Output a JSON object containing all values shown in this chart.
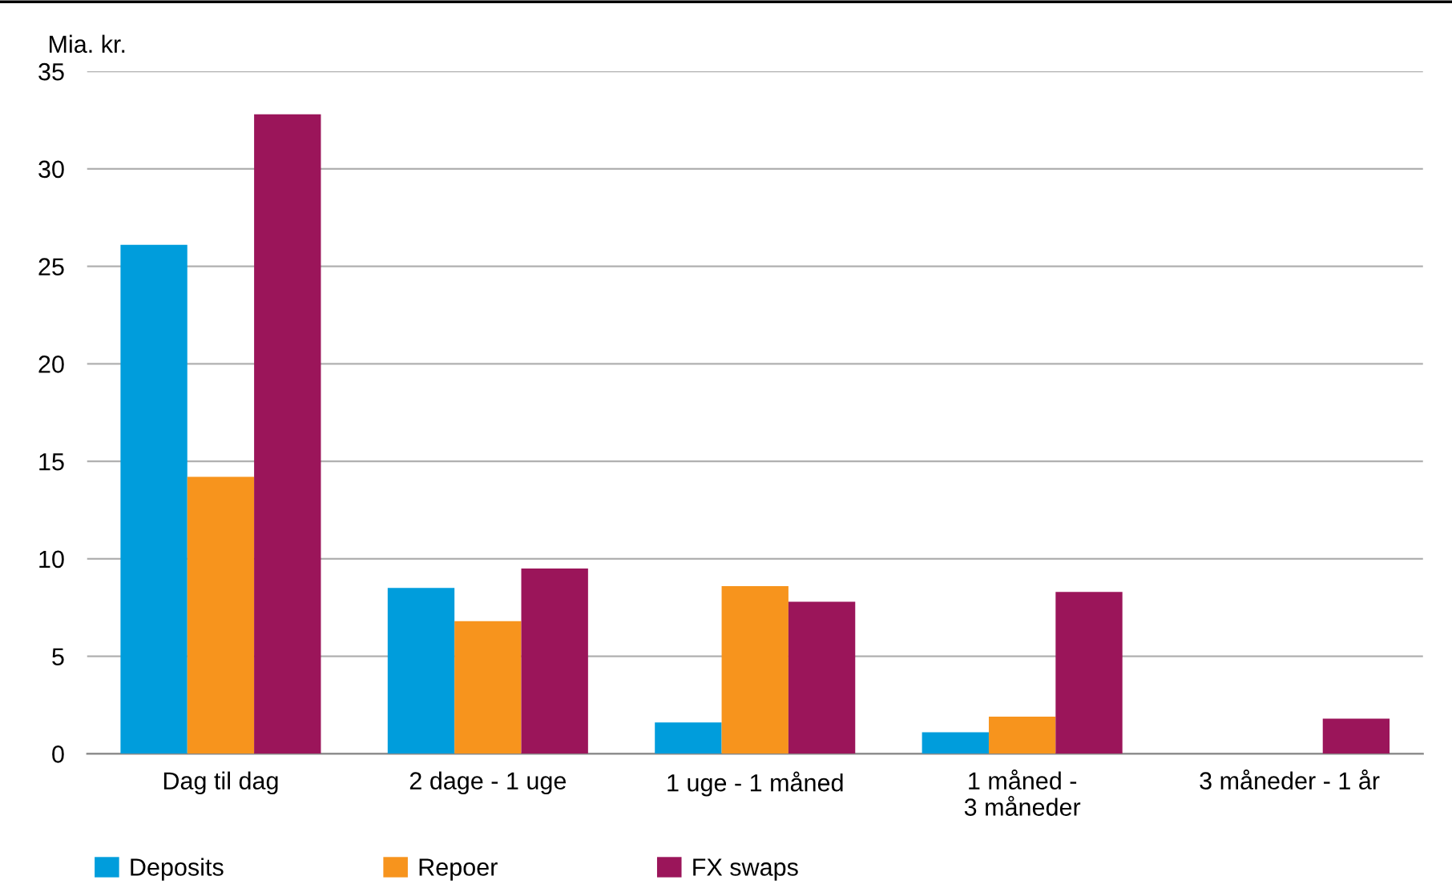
{
  "chart_data": {
    "type": "bar",
    "ylabel": "Mia. kr.",
    "categories": [
      "Dag til dag",
      "2 dage - 1 uge",
      "1 uge - 1 måned",
      "1 måned -\n3 måneder",
      "3 måneder - 1 år"
    ],
    "series": [
      {
        "name": "Deposits",
        "color": "#009ddc",
        "values": [
          26.1,
          8.5,
          1.6,
          1.1,
          0
        ]
      },
      {
        "name": "Repoer",
        "color": "#f7941d",
        "values": [
          14.2,
          6.8,
          8.6,
          1.9,
          0
        ]
      },
      {
        "name": "FX swaps",
        "color": "#9b155a",
        "values": [
          32.8,
          9.5,
          7.8,
          8.3,
          1.8
        ]
      }
    ],
    "ylim": [
      0,
      35
    ],
    "yticks": [
      0,
      5,
      10,
      15,
      20,
      25,
      30,
      35
    ],
    "grid": "y",
    "legend": "bottom left"
  }
}
